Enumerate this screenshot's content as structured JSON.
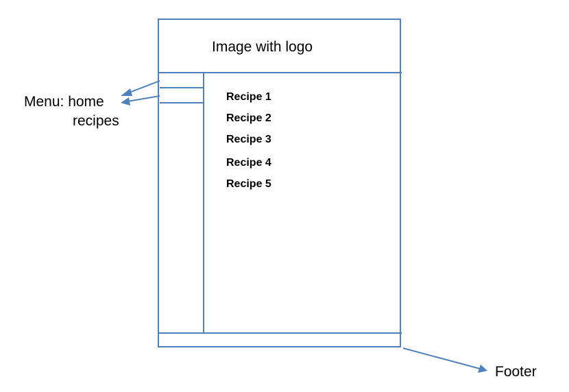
{
  "header": {
    "text": "Image with logo"
  },
  "recipes": {
    "items": [
      "Recipe 1",
      "Recipe 2",
      "Recipe 3",
      "Recipe 4",
      "Recipe 5"
    ]
  },
  "annotations": {
    "menu_label_line1": "Menu: home",
    "menu_label_line2": "recipes",
    "footer_label": "Footer"
  },
  "colors": {
    "line": "#4f81bd",
    "text": "#000000",
    "background": "#ffffff"
  }
}
